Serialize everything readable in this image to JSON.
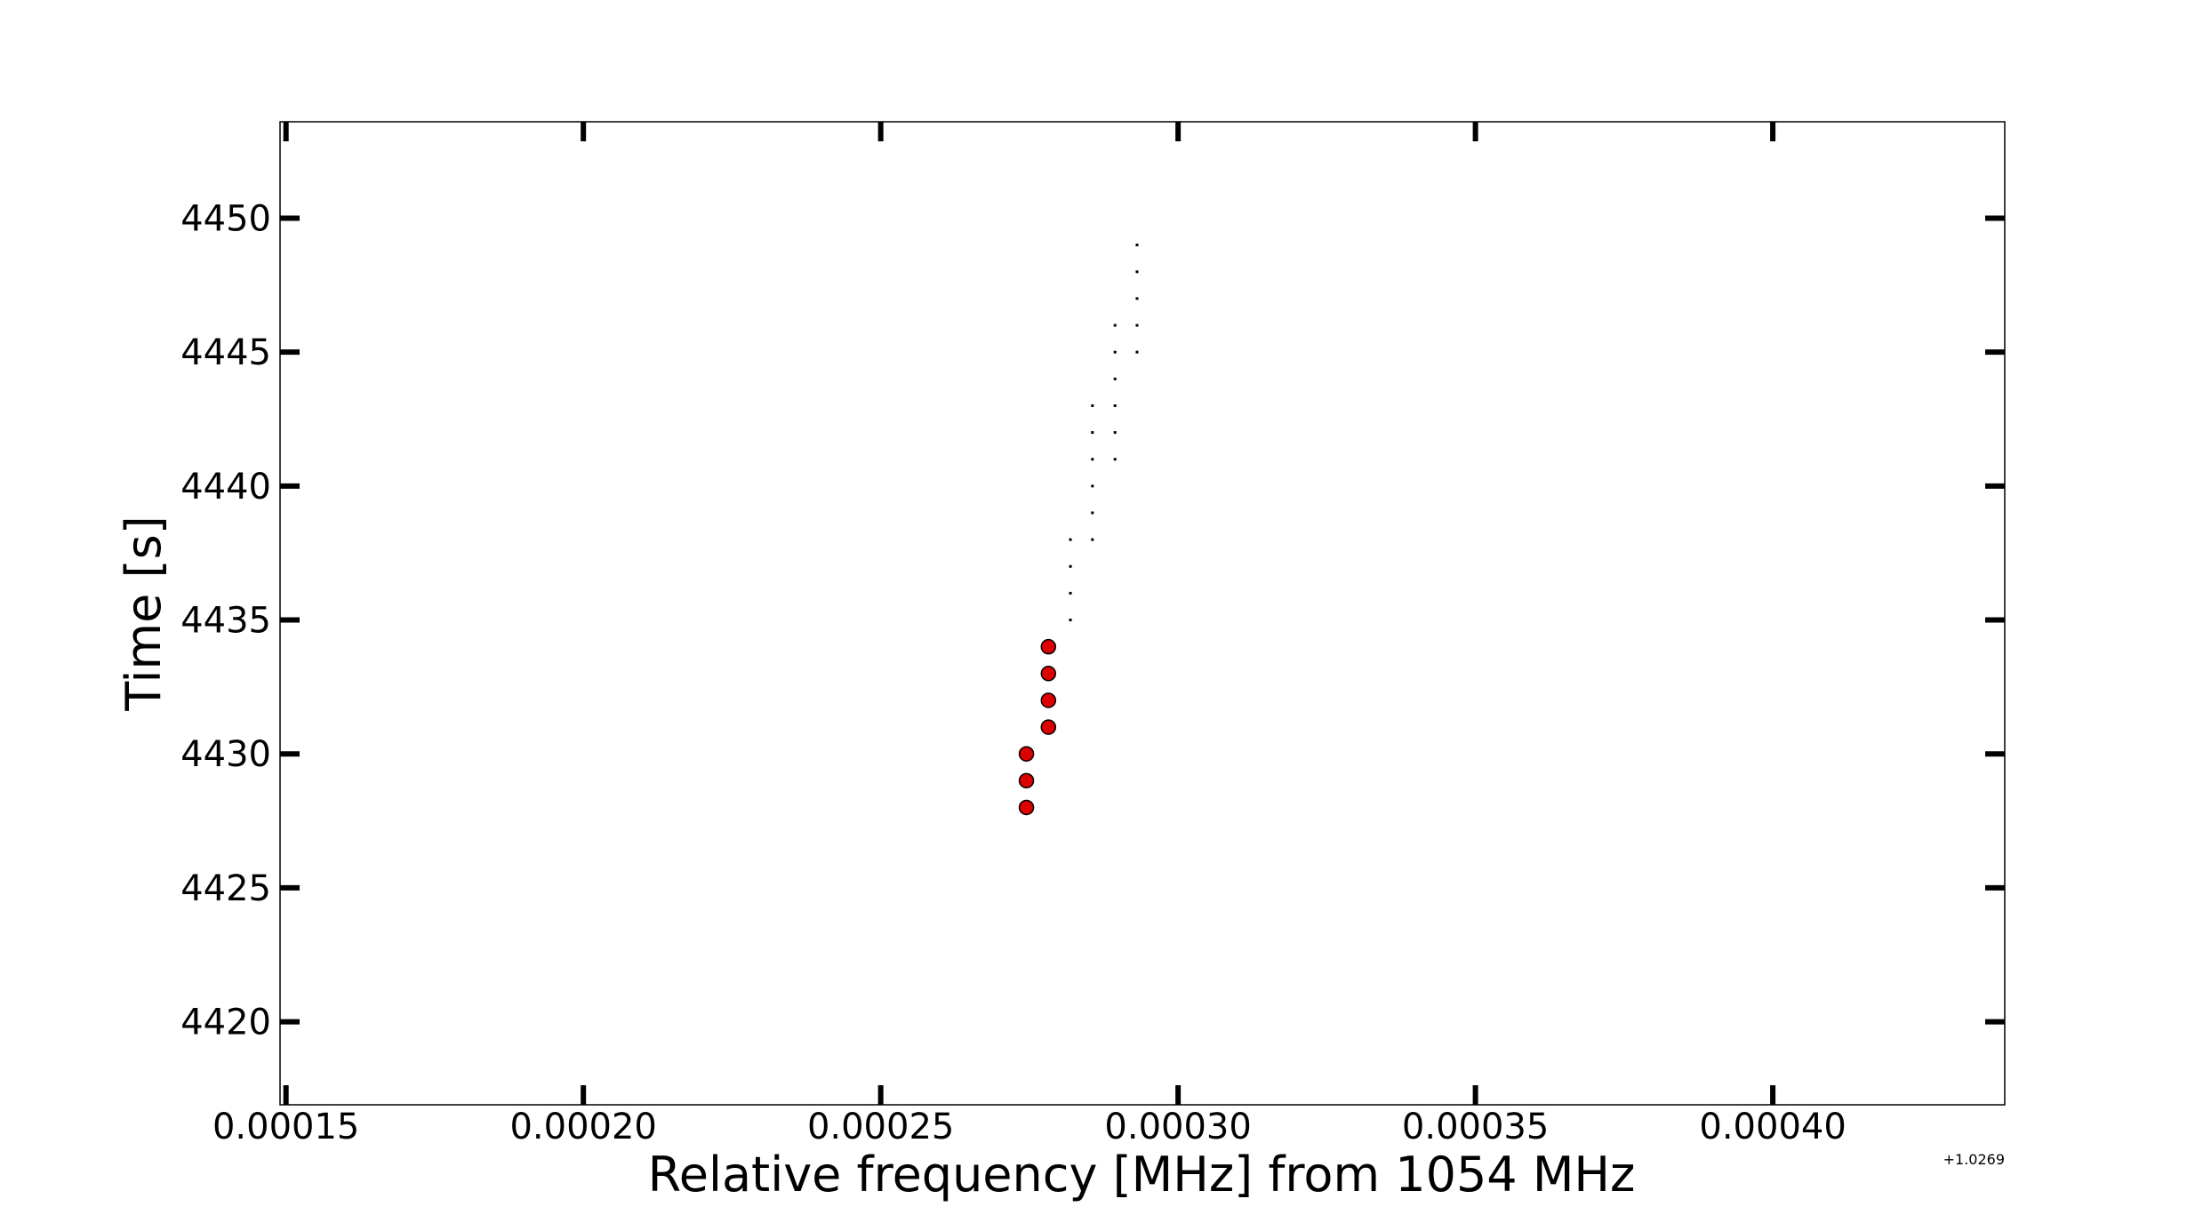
{
  "chart_data": {
    "type": "scatter",
    "title": "",
    "xlabel": "Relative frequency [MHz] from 1054 MHz",
    "ylabel": "Time [s]",
    "x_offset_text": "+1.0269",
    "xlim": [
      0.000149,
      0.000439
    ],
    "ylim": [
      4416.9,
      4453.6
    ],
    "xticks": [
      0.00015,
      0.0002,
      0.00025,
      0.0003,
      0.00035,
      0.0004
    ],
    "xtick_labels": [
      "0.00015",
      "0.00020",
      "0.00025",
      "0.00030",
      "0.00035",
      "0.00040"
    ],
    "yticks": [
      4420,
      4425,
      4430,
      4435,
      4440,
      4445,
      4450
    ],
    "ytick_labels": [
      "4420",
      "4425",
      "4430",
      "4435",
      "4440",
      "4445",
      "4450"
    ],
    "grid": false,
    "legend": "none",
    "series": [
      {
        "marker": "circle",
        "color": "#dd0000",
        "edge_color": "#000000",
        "points": [
          {
            "x": 0.0002745,
            "y": 4428
          },
          {
            "x": 0.0002745,
            "y": 4429
          },
          {
            "x": 0.0002745,
            "y": 4430
          },
          {
            "x": 0.0002782,
            "y": 4431
          },
          {
            "x": 0.0002782,
            "y": 4432
          },
          {
            "x": 0.0002782,
            "y": 4433
          },
          {
            "x": 0.0002782,
            "y": 4434
          }
        ]
      },
      {
        "marker": "pixel",
        "color": "#000000",
        "points": [
          {
            "x": 0.0002819,
            "y": 4435
          },
          {
            "x": 0.0002819,
            "y": 4436
          },
          {
            "x": 0.0002819,
            "y": 4437
          },
          {
            "x": 0.0002819,
            "y": 4438
          },
          {
            "x": 0.0002856,
            "y": 4438
          },
          {
            "x": 0.0002856,
            "y": 4439
          },
          {
            "x": 0.0002856,
            "y": 4440
          },
          {
            "x": 0.0002856,
            "y": 4441
          },
          {
            "x": 0.0002856,
            "y": 4442
          },
          {
            "x": 0.0002856,
            "y": 4443
          },
          {
            "x": 0.0002894,
            "y": 4441
          },
          {
            "x": 0.0002894,
            "y": 4442
          },
          {
            "x": 0.0002894,
            "y": 4443
          },
          {
            "x": 0.0002894,
            "y": 4444
          },
          {
            "x": 0.0002894,
            "y": 4445
          },
          {
            "x": 0.0002894,
            "y": 4446
          },
          {
            "x": 0.0002931,
            "y": 4445
          },
          {
            "x": 0.0002931,
            "y": 4446
          },
          {
            "x": 0.0002931,
            "y": 4447
          },
          {
            "x": 0.0002931,
            "y": 4448
          },
          {
            "x": 0.0002931,
            "y": 4449
          }
        ]
      }
    ]
  }
}
